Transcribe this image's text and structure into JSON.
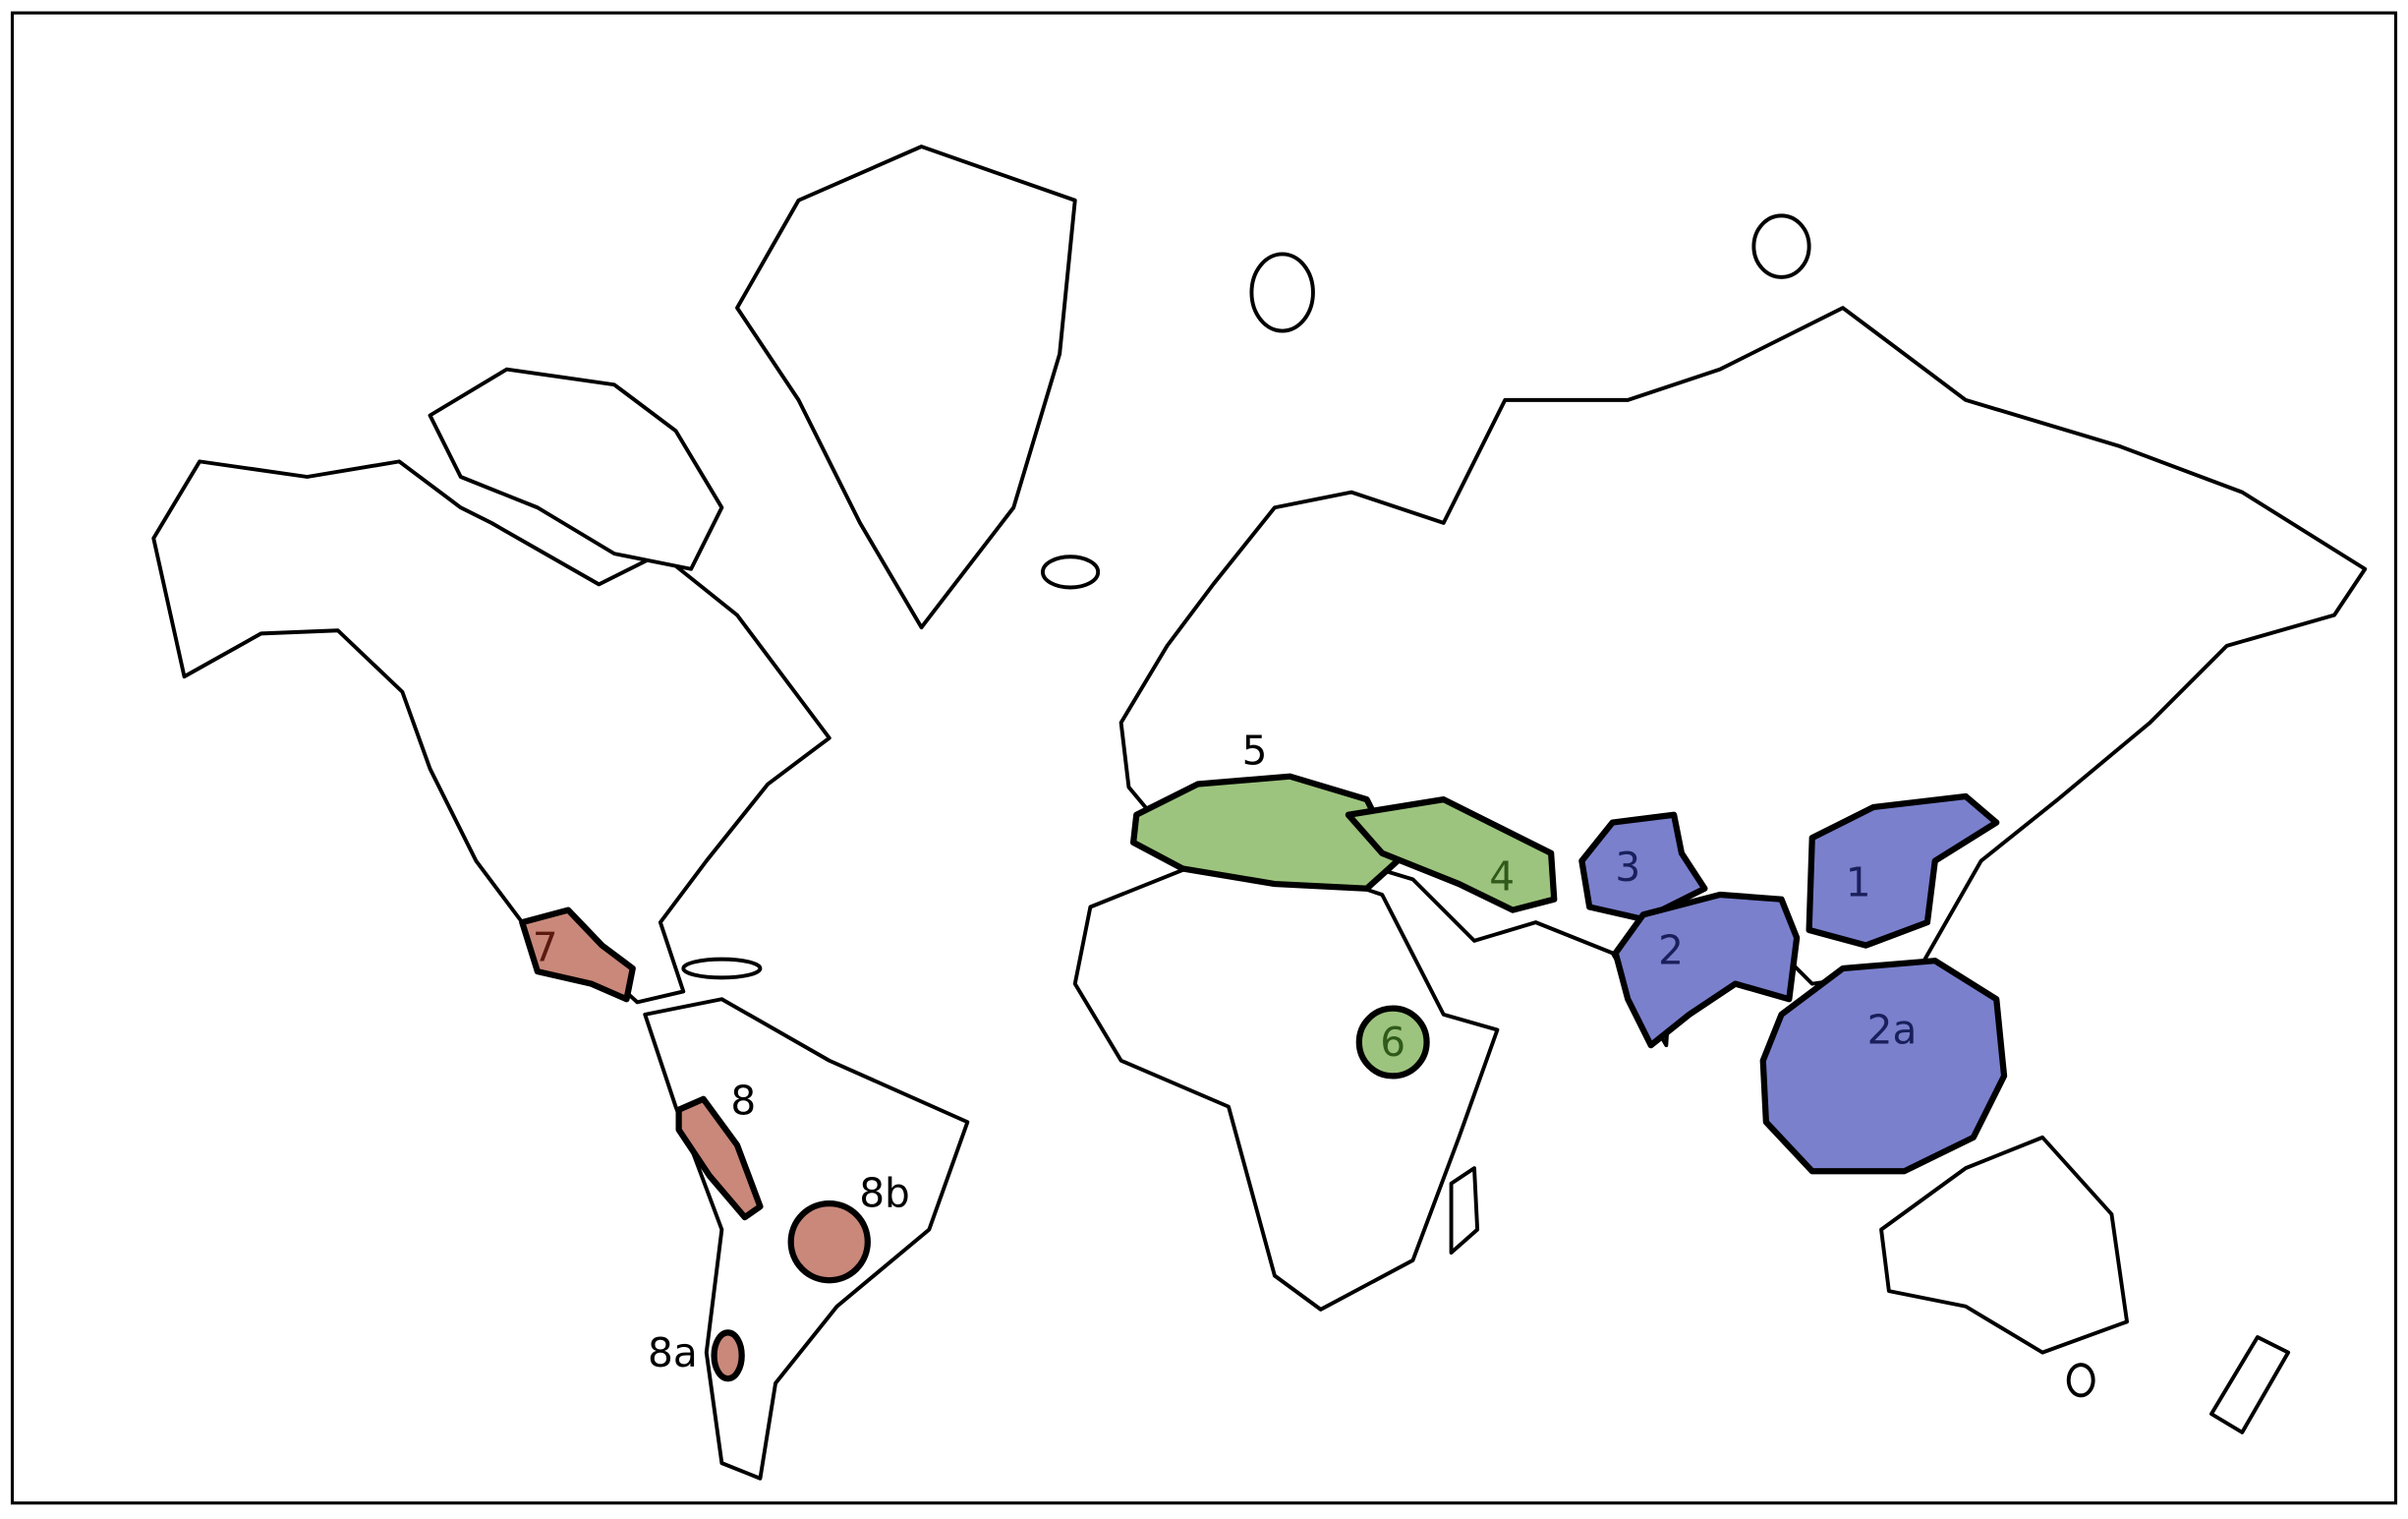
{
  "regions": [
    {
      "label": "1"
    },
    {
      "label": "2"
    },
    {
      "label": "2a"
    },
    {
      "label": "3"
    },
    {
      "label": "4"
    },
    {
      "label": "5"
    },
    {
      "label": "6"
    },
    {
      "label": "7"
    },
    {
      "label": "8"
    },
    {
      "label": "8a"
    },
    {
      "label": "8b"
    }
  ]
}
